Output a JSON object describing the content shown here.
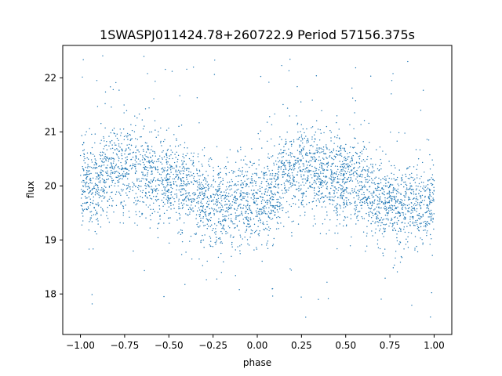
{
  "chart_data": {
    "type": "scatter",
    "title": "1SWASPJ011424.78+260722.9 Period 57156.375s",
    "xlabel": "phase",
    "ylabel": "flux",
    "xlim": [
      -1.1,
      1.1
    ],
    "ylim": [
      17.25,
      22.6
    ],
    "x_ticks": [
      -1.0,
      -0.75,
      -0.5,
      -0.25,
      0.0,
      0.25,
      0.5,
      0.75,
      1.0
    ],
    "x_tick_labels": [
      "−1.00",
      "−0.75",
      "−0.50",
      "−0.25",
      "0.00",
      "0.25",
      "0.50",
      "0.75",
      "1.00"
    ],
    "y_ticks": [
      18,
      19,
      20,
      21,
      22
    ],
    "y_tick_labels": [
      "18",
      "19",
      "20",
      "21",
      "22"
    ],
    "grid": false,
    "legend": "none",
    "marker_color": "#1f77b4",
    "series": [
      {
        "phase_range": [
          -1.0,
          1.0
        ],
        "points_per_cycle_approx": 2000,
        "trend": {
          "phase": [
            -1.0,
            -0.75,
            -0.5,
            -0.25,
            0.0,
            0.25,
            0.5,
            0.75,
            1.0
          ],
          "flux": [
            20.0,
            20.35,
            20.1,
            19.65,
            19.7,
            20.35,
            20.1,
            19.65,
            19.7
          ]
        },
        "core_scatter_sd": 0.4,
        "outlier_flux_range": [
          17.5,
          22.5
        ]
      }
    ]
  }
}
